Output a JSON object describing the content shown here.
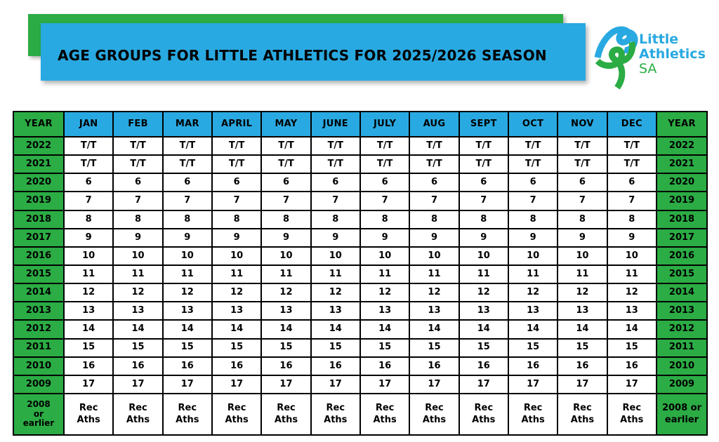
{
  "banner": {
    "title": "AGE GROUPS FOR LITTLE ATHLETICS FOR 2025/2026 SEASON"
  },
  "logo": {
    "icon": "ribbon-runner-icon",
    "line1": "Little",
    "line2": "Athletics",
    "line3": "SA"
  },
  "colors": {
    "green": "#2bac44",
    "blue": "#29a9e1",
    "border": "#000000",
    "text": "#000000"
  },
  "table": {
    "header": {
      "year_left": "YEAR",
      "months": [
        "JAN",
        "FEB",
        "MAR",
        "APRIL",
        "MAY",
        "JUNE",
        "JULY",
        "AUG",
        "SEPT",
        "OCT",
        "NOV",
        "DEC"
      ],
      "year_right": "YEAR"
    },
    "rows": [
      {
        "year_left": "2022",
        "value": "T/T",
        "year_right": "2022"
      },
      {
        "year_left": "2021",
        "value": "T/T",
        "year_right": "2021"
      },
      {
        "year_left": "2020",
        "value": "6",
        "year_right": "2020"
      },
      {
        "year_left": "2019",
        "value": "7",
        "year_right": "2019"
      },
      {
        "year_left": "2018",
        "value": "8",
        "year_right": "2018"
      },
      {
        "year_left": "2017",
        "value": "9",
        "year_right": "2017"
      },
      {
        "year_left": "2016",
        "value": "10",
        "year_right": "2016"
      },
      {
        "year_left": "2015",
        "value": "11",
        "year_right": "2015"
      },
      {
        "year_left": "2014",
        "value": "12",
        "year_right": "2014"
      },
      {
        "year_left": "2013",
        "value": "13",
        "year_right": "2013"
      },
      {
        "year_left": "2012",
        "value": "14",
        "year_right": "2012"
      },
      {
        "year_left": "2011",
        "value": "15",
        "year_right": "2011"
      },
      {
        "year_left": "2010",
        "value": "16",
        "year_right": "2010"
      },
      {
        "year_left": "2009",
        "value": "17",
        "year_right": "2009"
      },
      {
        "year_left": "2008\nor\nearlier",
        "value": "Rec\nAths",
        "year_right": "2008 or\nearlier"
      }
    ]
  }
}
